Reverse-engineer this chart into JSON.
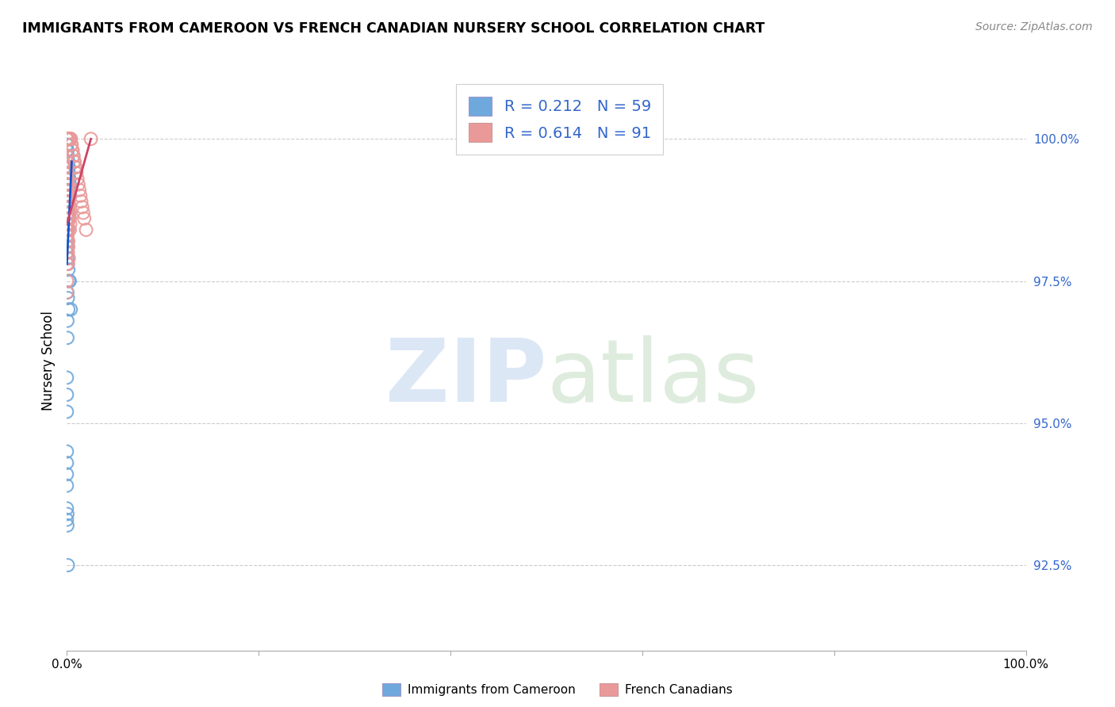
{
  "title": "IMMIGRANTS FROM CAMEROON VS FRENCH CANADIAN NURSERY SCHOOL CORRELATION CHART",
  "source": "Source: ZipAtlas.com",
  "ylabel": "Nursery School",
  "ytick_values": [
    92.5,
    95.0,
    97.5,
    100.0
  ],
  "xmin": 0.0,
  "xmax": 100.0,
  "ymin": 91.0,
  "ymax": 101.2,
  "legend_r1": "R = 0.212",
  "legend_n1": "N = 59",
  "legend_r2": "R = 0.614",
  "legend_n2": "N = 91",
  "blue_color": "#6fa8dc",
  "pink_color": "#ea9999",
  "blue_line_color": "#1155cc",
  "pink_line_color": "#cc4466",
  "blue_x": [
    0.0,
    0.0,
    0.0,
    0.0,
    0.0,
    0.0,
    0.05,
    0.05,
    0.05,
    0.05,
    0.1,
    0.1,
    0.1,
    0.15,
    0.15,
    0.2,
    0.2,
    0.25,
    0.3,
    0.35,
    0.0,
    0.0,
    0.0,
    0.0,
    0.0,
    0.05,
    0.05,
    0.05,
    0.1,
    0.1,
    0.0,
    0.0,
    0.0,
    0.0,
    0.0,
    0.0,
    0.05,
    0.1,
    0.15,
    0.2,
    0.05,
    0.1,
    0.15,
    0.05,
    0.05,
    0.0,
    0.0,
    0.0,
    0.3,
    0.4,
    0.0,
    0.0,
    0.05,
    0.1,
    0.05,
    0.0,
    0.0,
    0.0,
    0.0
  ],
  "blue_y": [
    100.0,
    99.9,
    99.8,
    99.7,
    99.6,
    99.5,
    99.8,
    99.7,
    99.6,
    99.5,
    99.7,
    99.6,
    99.5,
    99.6,
    99.5,
    99.5,
    99.4,
    99.3,
    99.2,
    99.0,
    99.3,
    99.2,
    99.1,
    99.0,
    98.9,
    99.1,
    98.9,
    98.8,
    98.7,
    98.6,
    98.5,
    98.4,
    98.3,
    98.2,
    98.1,
    98.0,
    97.9,
    97.8,
    97.7,
    97.5,
    97.3,
    97.2,
    97.0,
    96.8,
    96.5,
    95.8,
    95.5,
    95.2,
    97.5,
    97.0,
    93.5,
    93.3,
    93.4,
    92.5,
    93.2,
    94.5,
    94.3,
    94.1,
    93.9
  ],
  "pink_x": [
    0.0,
    0.0,
    0.0,
    0.0,
    0.0,
    0.05,
    0.05,
    0.05,
    0.05,
    0.05,
    0.1,
    0.1,
    0.1,
    0.1,
    0.15,
    0.15,
    0.15,
    0.2,
    0.2,
    0.25,
    0.25,
    0.3,
    0.3,
    0.35,
    0.35,
    0.4,
    0.4,
    0.45,
    0.5,
    0.55,
    0.6,
    0.65,
    0.7,
    0.75,
    0.8,
    0.85,
    0.9,
    0.95,
    1.0,
    1.1,
    1.2,
    1.3,
    1.4,
    1.5,
    1.6,
    1.7,
    1.8,
    2.0,
    0.0,
    0.0,
    0.0,
    0.05,
    0.1,
    0.15,
    0.2,
    0.25,
    0.3,
    0.35,
    0.05,
    0.1,
    0.15,
    0.2,
    0.25,
    0.3,
    0.05,
    0.1,
    0.0,
    0.0,
    0.0,
    0.0,
    0.0,
    0.0,
    0.0,
    0.0,
    0.05,
    0.05,
    0.05,
    0.05,
    0.1,
    0.1,
    0.15,
    0.2,
    0.0,
    0.0,
    0.05,
    0.05,
    0.1,
    0.1,
    0.15,
    0.15,
    2.5
  ],
  "pink_y": [
    100.0,
    100.0,
    100.0,
    100.0,
    100.0,
    100.0,
    100.0,
    100.0,
    100.0,
    100.0,
    100.0,
    100.0,
    100.0,
    100.0,
    100.0,
    100.0,
    100.0,
    100.0,
    100.0,
    100.0,
    100.0,
    100.0,
    100.0,
    100.0,
    100.0,
    100.0,
    100.0,
    99.9,
    99.9,
    99.8,
    99.8,
    99.7,
    99.7,
    99.6,
    99.6,
    99.5,
    99.5,
    99.4,
    99.4,
    99.3,
    99.2,
    99.1,
    99.0,
    98.9,
    98.8,
    98.7,
    98.6,
    98.4,
    99.5,
    99.3,
    99.2,
    99.1,
    99.0,
    98.9,
    98.8,
    98.7,
    98.6,
    98.5,
    99.2,
    99.0,
    98.9,
    98.7,
    98.6,
    98.4,
    99.4,
    99.2,
    98.8,
    98.6,
    98.4,
    98.2,
    98.0,
    97.8,
    97.5,
    97.3,
    99.0,
    98.8,
    98.5,
    98.3,
    98.0,
    97.8,
    98.2,
    97.9,
    99.7,
    99.6,
    99.3,
    99.1,
    98.9,
    98.6,
    98.4,
    98.1,
    100.0
  ],
  "blue_trend_x": [
    0.0,
    0.5
  ],
  "blue_trend_y_start": 97.8,
  "blue_trend_y_end": 99.6,
  "pink_trend_x": [
    0.0,
    2.5
  ],
  "pink_trend_y_start": 98.5,
  "pink_trend_y_end": 100.0
}
